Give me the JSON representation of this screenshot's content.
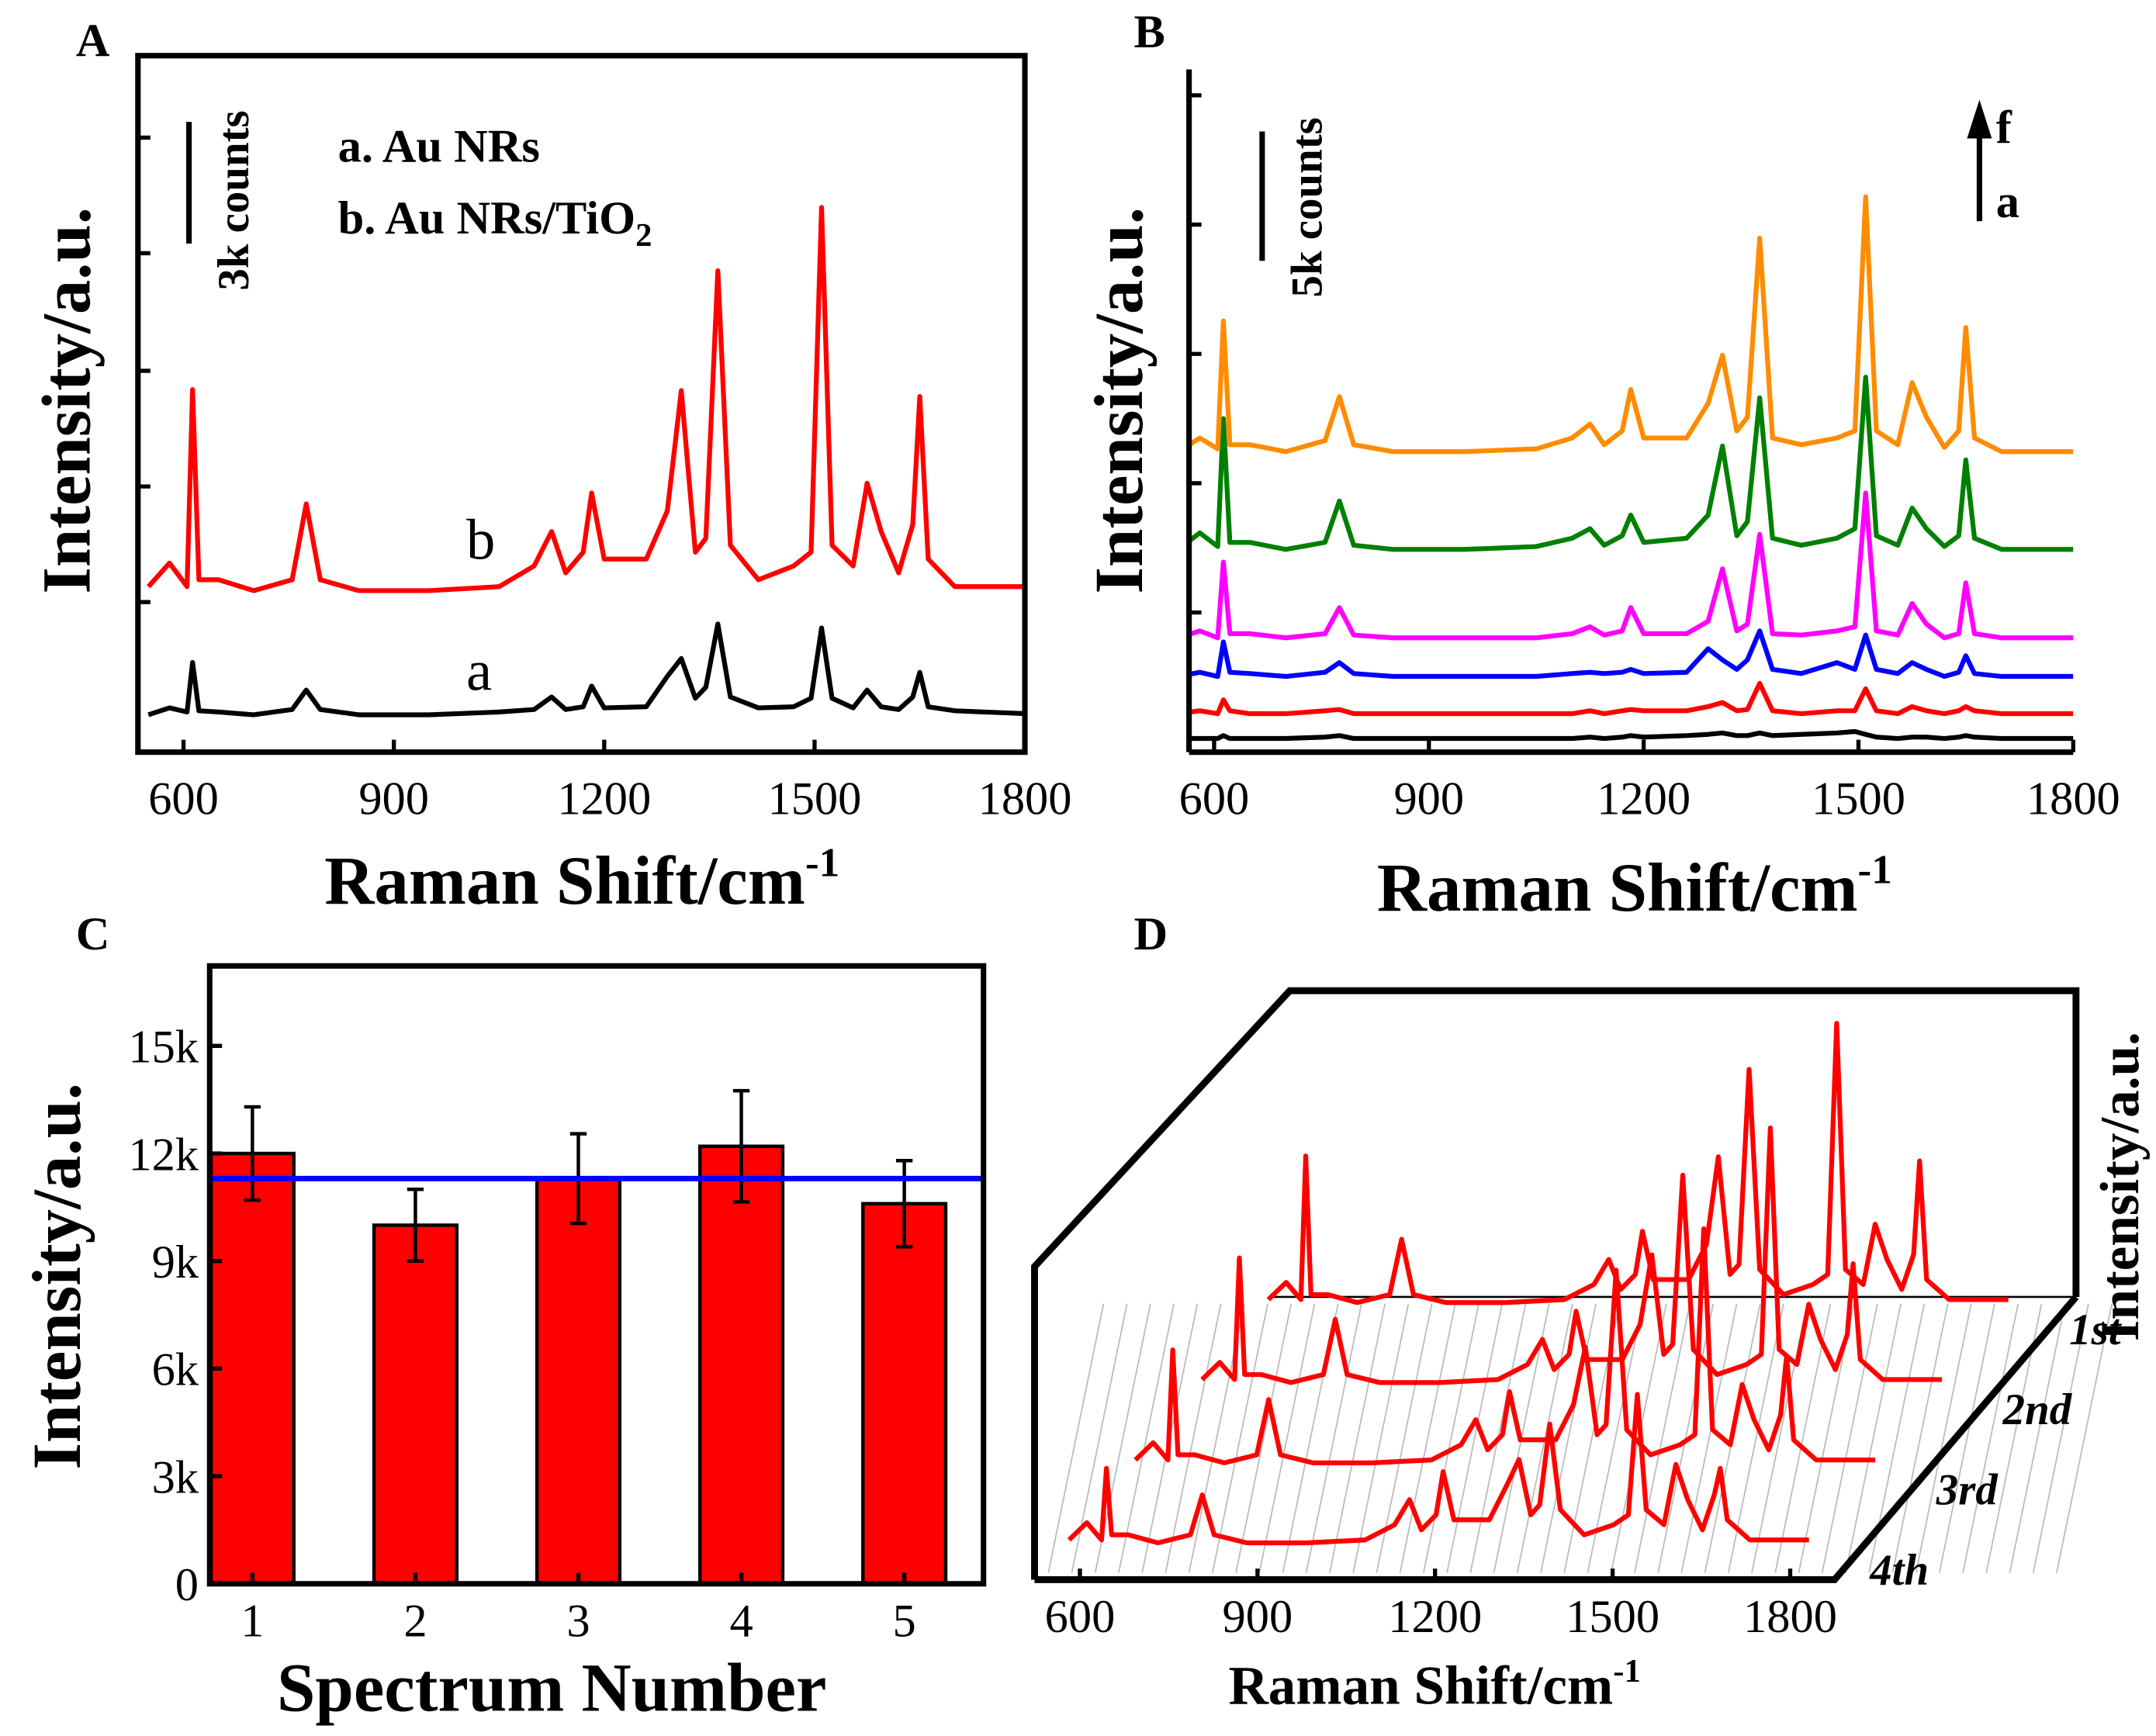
{
  "chart_data": [
    {
      "type": "line",
      "panel": "A",
      "frame": true,
      "xlabel": {
        "text": "Raman Shift/cm",
        "sup": "-1"
      },
      "ylabel": "Intensity/a.u.",
      "xlim": [
        535,
        1800
      ],
      "xticks": [
        600,
        900,
        1200,
        1500,
        1800
      ],
      "ylim": [
        0,
        17170
      ],
      "yticks": [
        3700,
        6550,
        9400,
        12300,
        15150
      ],
      "scale_bar": {
        "value": 3000,
        "label": "3k counts"
      },
      "annotations": [
        {
          "text": "a. Au NRs"
        },
        {
          "text": "b. Au NRs/TiO",
          "sub": "2"
        }
      ],
      "x": [
        550,
        580,
        605,
        613,
        622,
        650,
        700,
        755,
        775,
        795,
        850,
        950,
        1050,
        1100,
        1125,
        1145,
        1170,
        1182,
        1200,
        1260,
        1290,
        1310,
        1330,
        1345,
        1362,
        1380,
        1420,
        1470,
        1495,
        1510,
        1525,
        1555,
        1575,
        1595,
        1620,
        1640,
        1650,
        1662,
        1700,
        1800
      ],
      "series": [
        {
          "name": "a",
          "color": "#000000",
          "values": [
            920,
            1090,
            990,
            2210,
            1020,
            990,
            920,
            1050,
            1530,
            1050,
            920,
            920,
            990,
            1050,
            1360,
            1050,
            1120,
            1630,
            1090,
            1120,
            1870,
            2310,
            1330,
            1600,
            3160,
            1360,
            1090,
            1120,
            1330,
            3060,
            1330,
            1090,
            1530,
            1120,
            1050,
            1360,
            1970,
            1120,
            1020,
            950
          ]
        },
        {
          "name": "b",
          "color": "#ff0000",
          "values": [
            4080,
            4660,
            4080,
            8940,
            4250,
            4250,
            3980,
            4250,
            6120,
            4250,
            3980,
            3980,
            4080,
            4590,
            5440,
            4420,
            4930,
            6390,
            4760,
            4760,
            5950,
            8910,
            4930,
            5270,
            11870,
            5100,
            4250,
            4590,
            4930,
            13430,
            5100,
            4590,
            6630,
            5440,
            4420,
            5610,
            8770,
            4760,
            4080,
            4080
          ]
        }
      ]
    },
    {
      "type": "line",
      "panel": "B",
      "frame": false,
      "xlabel": {
        "text": "Raman Shift/cm",
        "sup": "-1"
      },
      "ylabel": "Intensity/a.u.",
      "xlim": [
        565,
        1800
      ],
      "xticks": [
        600,
        900,
        1200,
        1500,
        1800
      ],
      "ylim": [
        0,
        26400
      ],
      "yticks": [
        5400,
        10400,
        15400,
        20400,
        25400
      ],
      "scale_bar": {
        "value": 5000,
        "label": "5k counts"
      },
      "arrow": {
        "to": "f",
        "from": "a"
      },
      "x": [
        550,
        580,
        605,
        613,
        622,
        650,
        700,
        755,
        775,
        795,
        850,
        950,
        1050,
        1100,
        1125,
        1145,
        1170,
        1182,
        1200,
        1260,
        1290,
        1310,
        1330,
        1345,
        1362,
        1380,
        1420,
        1470,
        1495,
        1510,
        1525,
        1555,
        1575,
        1595,
        1620,
        1640,
        1650,
        1662,
        1700,
        1800
      ],
      "series": [
        {
          "color": "#000000",
          "values": [
            530,
            530,
            530,
            640,
            530,
            530,
            530,
            580,
            640,
            530,
            530,
            530,
            530,
            530,
            580,
            530,
            580,
            640,
            580,
            640,
            690,
            740,
            640,
            640,
            740,
            640,
            690,
            740,
            800,
            690,
            580,
            530,
            580,
            580,
            530,
            580,
            640,
            580,
            530,
            530
          ]
        },
        {
          "color": "#ff0000",
          "values": [
            1490,
            1600,
            1490,
            2020,
            1600,
            1490,
            1490,
            1600,
            1650,
            1490,
            1490,
            1490,
            1490,
            1490,
            1600,
            1490,
            1600,
            1650,
            1600,
            1600,
            1760,
            1920,
            1600,
            1650,
            2660,
            1600,
            1490,
            1600,
            1600,
            2450,
            1600,
            1490,
            1760,
            1600,
            1490,
            1600,
            1760,
            1600,
            1490,
            1490
          ]
        },
        {
          "color": "#0000ff",
          "values": [
            2930,
            3090,
            2930,
            4260,
            3090,
            3040,
            2930,
            3090,
            3460,
            3040,
            2930,
            2930,
            2930,
            3040,
            3090,
            3040,
            3090,
            3200,
            3040,
            3090,
            4000,
            3570,
            3200,
            3570,
            4690,
            3200,
            3040,
            3460,
            3200,
            4530,
            3200,
            3040,
            3460,
            3200,
            2930,
            3090,
            3730,
            3040,
            2930,
            2930
          ]
        },
        {
          "color": "#ff00ff",
          "values": [
            4420,
            4690,
            4420,
            7350,
            4580,
            4580,
            4420,
            4580,
            5590,
            4530,
            4420,
            4420,
            4420,
            4580,
            4850,
            4530,
            4690,
            5590,
            4580,
            4580,
            5060,
            7090,
            4690,
            4950,
            8420,
            4580,
            4530,
            4690,
            4850,
            10020,
            4690,
            4530,
            5750,
            4950,
            4420,
            4580,
            6550,
            4580,
            4420,
            4420
          ]
        },
        {
          "color": "#008000",
          "values": [
            7840,
            8480,
            7950,
            12900,
            8110,
            8110,
            7840,
            8110,
            9710,
            8000,
            7840,
            7840,
            7950,
            8270,
            8640,
            8000,
            8370,
            9170,
            8110,
            8270,
            9170,
            11840,
            8370,
            8910,
            13700,
            8270,
            8000,
            8270,
            8640,
            14500,
            8370,
            8000,
            9440,
            8640,
            7950,
            8370,
            11300,
            8270,
            7840,
            7840
          ]
        },
        {
          "color": "#ff8c00",
          "values": [
            11620,
            12150,
            11730,
            16680,
            11890,
            11890,
            11620,
            12050,
            13750,
            11890,
            11620,
            11620,
            11730,
            12150,
            12690,
            11890,
            12420,
            14020,
            12150,
            12150,
            13490,
            15350,
            12420,
            12950,
            19880,
            12150,
            11890,
            12150,
            12420,
            21480,
            12420,
            11890,
            14290,
            12950,
            11780,
            12420,
            16420,
            12150,
            11620,
            11620
          ]
        }
      ]
    },
    {
      "type": "bar",
      "panel": "C",
      "frame": true,
      "xlabel": "Spectrum Number",
      "ylabel": "Intensity/a.u.",
      "categories": [
        "1",
        "2",
        "3",
        "4",
        "5"
      ],
      "values": [
        12000,
        10000,
        11300,
        12200,
        10600
      ],
      "errors": [
        1300,
        1000,
        1250,
        1550,
        1200
      ],
      "color": "#ff0000",
      "reference_line": 11300,
      "reference_color": "#0000ff",
      "ylim": [
        0,
        17230
      ],
      "yticks": [
        0,
        {
          "value": 3000,
          "label": "3k"
        },
        {
          "value": 6000,
          "label": "6k"
        },
        {
          "value": 9000,
          "label": "9k"
        },
        {
          "value": 12000,
          "label": "12k"
        },
        {
          "value": 15000,
          "label": "15k"
        }
      ]
    },
    {
      "type": "waterfall",
      "panel": "D",
      "xlabel": {
        "text": "Raman Shift/cm",
        "sup": "-1"
      },
      "zlabel": "Intensity/a.u.",
      "xlim": [
        535,
        1875
      ],
      "xticks": [
        600,
        900,
        1200,
        1500,
        1800
      ],
      "zlim": [
        3500,
        14000
      ],
      "x": [
        550,
        580,
        605,
        613,
        622,
        650,
        700,
        755,
        775,
        795,
        850,
        950,
        1050,
        1100,
        1125,
        1145,
        1170,
        1182,
        1200,
        1260,
        1290,
        1310,
        1330,
        1345,
        1362,
        1380,
        1420,
        1470,
        1495,
        1510,
        1525,
        1555,
        1575,
        1595,
        1620,
        1640,
        1650,
        1662,
        1700,
        1800
      ],
      "series": [
        {
          "name": "1st",
          "color": "#ff0000",
          "values": [
            4080,
            4660,
            4080,
            8940,
            4250,
            4250,
            3980,
            4250,
            6120,
            4250,
            3980,
            3980,
            4080,
            4590,
            5440,
            4420,
            4930,
            6390,
            4760,
            4760,
            5950,
            8910,
            4930,
            5270,
            11870,
            5100,
            4250,
            4590,
            4930,
            13430,
            5100,
            4590,
            6630,
            5440,
            4420,
            5610,
            8770,
            4760,
            4080,
            4080
          ]
        },
        {
          "name": "2nd",
          "color": "#ff0000",
          "values": [
            4080,
            4660,
            4080,
            8200,
            4250,
            4250,
            3980,
            4250,
            6120,
            4250,
            3980,
            3980,
            4080,
            4590,
            5440,
            4420,
            4930,
            6390,
            4760,
            4760,
            5950,
            8300,
            4930,
            5270,
            11000,
            5100,
            4250,
            4590,
            4930,
            12600,
            5100,
            4590,
            6630,
            5440,
            4420,
            5610,
            8000,
            4760,
            4080,
            4080
          ]
        },
        {
          "name": "3rd",
          "color": "#ff0000",
          "values": [
            4080,
            4660,
            4080,
            7800,
            4250,
            4250,
            3980,
            4250,
            6120,
            4250,
            3980,
            3980,
            4080,
            4590,
            5440,
            4420,
            4930,
            6390,
            4760,
            4760,
            5950,
            7900,
            4930,
            5270,
            10500,
            5100,
            4250,
            4590,
            4930,
            11900,
            5100,
            4590,
            6630,
            5440,
            4420,
            5610,
            7600,
            4760,
            4080,
            4080
          ]
        },
        {
          "name": "4th",
          "color": "#ff0000",
          "values": [
            4080,
            4660,
            4080,
            6500,
            4250,
            4250,
            3980,
            4250,
            5600,
            4250,
            3980,
            3980,
            4080,
            4590,
            5440,
            4420,
            4930,
            6390,
            4760,
            4760,
            5950,
            6800,
            4930,
            5270,
            8000,
            5100,
            4250,
            4590,
            4930,
            9000,
            5100,
            4590,
            6630,
            5440,
            4420,
            5610,
            6500,
            4760,
            4080,
            4080
          ]
        }
      ]
    }
  ]
}
